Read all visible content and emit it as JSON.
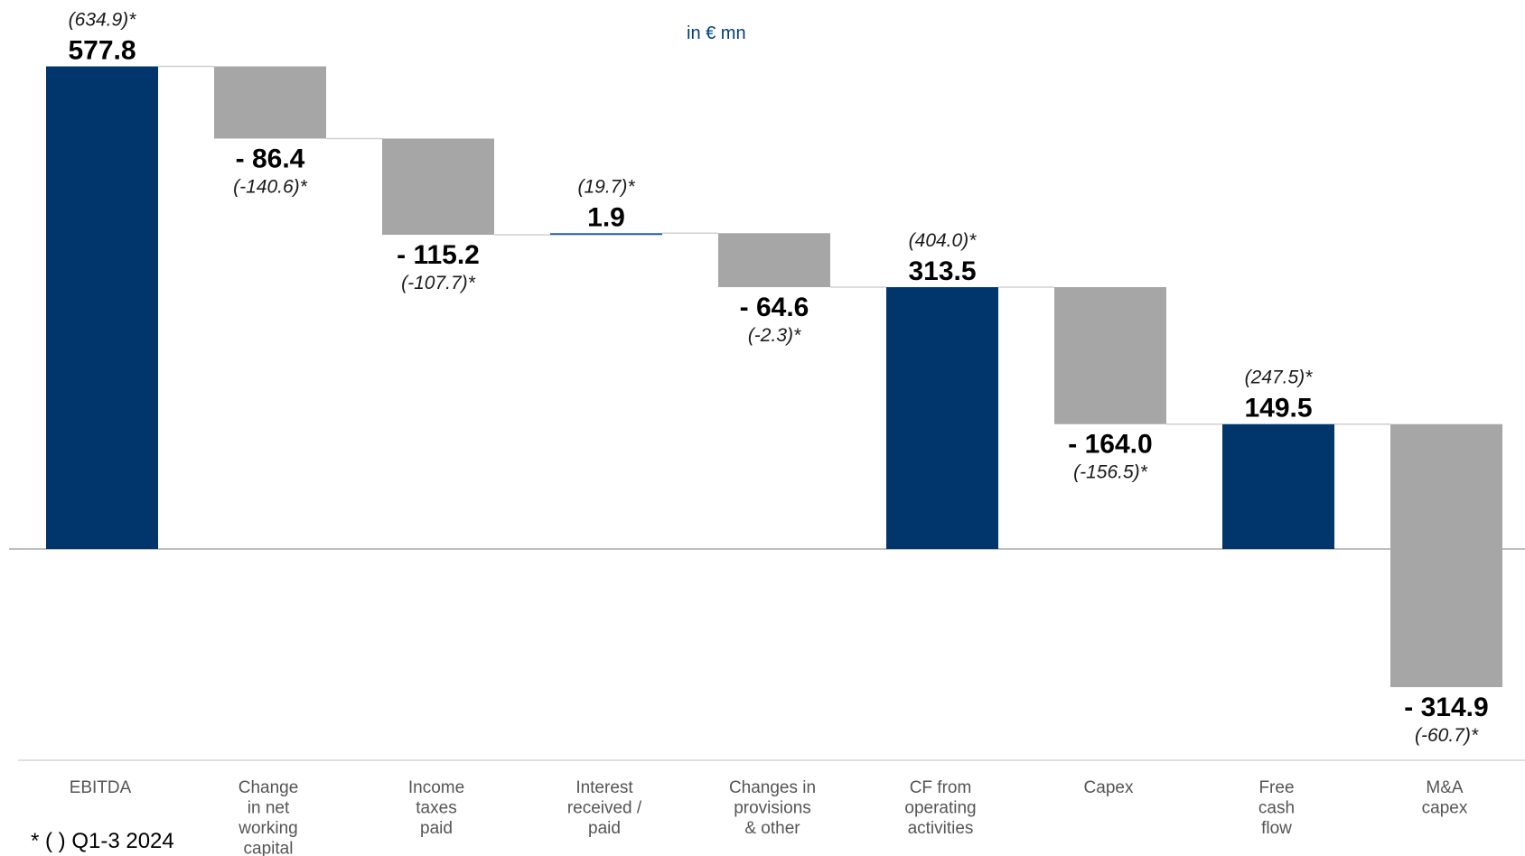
{
  "unit_note": "in € mn",
  "footnote": "* (  ) Q1-3 2024",
  "colors": {
    "total": "#00366b",
    "change": "#a6a6a6",
    "connector": "#d0d0d0",
    "axis": "#999999",
    "small_bar": "#1f5fa0"
  },
  "chart_data": {
    "type": "waterfall",
    "title": "",
    "unit": "in € mn",
    "ylim": [
      -380,
      640
    ],
    "categories": [
      [
        "EBITDA"
      ],
      [
        "Change",
        "in net",
        "working",
        "capital"
      ],
      [
        "Income",
        "taxes",
        "paid"
      ],
      [
        "Interest",
        "received /",
        "paid"
      ],
      [
        "Changes in",
        "provisions",
        "& other"
      ],
      [
        "CF from",
        "operating",
        "activities"
      ],
      [
        "Capex"
      ],
      [
        "Free",
        "cash",
        "flow"
      ],
      [
        "M&A",
        "capex"
      ]
    ],
    "bars": [
      {
        "kind": "total",
        "value": 577.8,
        "label": "577.8",
        "prior": "(634.9)*"
      },
      {
        "kind": "change",
        "value": -86.4,
        "label": "- 86.4",
        "prior": "(-140.6)*"
      },
      {
        "kind": "change",
        "value": -115.2,
        "label": "- 115.2",
        "prior": "(-107.7)*"
      },
      {
        "kind": "change",
        "value": 1.9,
        "label": "1.9",
        "prior": "(19.7)*"
      },
      {
        "kind": "change",
        "value": -64.6,
        "label": "- 64.6",
        "prior": "(-2.3)*"
      },
      {
        "kind": "total",
        "value": 313.5,
        "label": "313.5",
        "prior": "(404.0)*"
      },
      {
        "kind": "change",
        "value": -164.0,
        "label": "- 164.0",
        "prior": "(-156.5)*"
      },
      {
        "kind": "total",
        "value": 149.5,
        "label": "149.5",
        "prior": "(247.5)*"
      },
      {
        "kind": "change",
        "value": -314.9,
        "label": "- 314.9",
        "prior": "(-60.7)*"
      }
    ]
  }
}
